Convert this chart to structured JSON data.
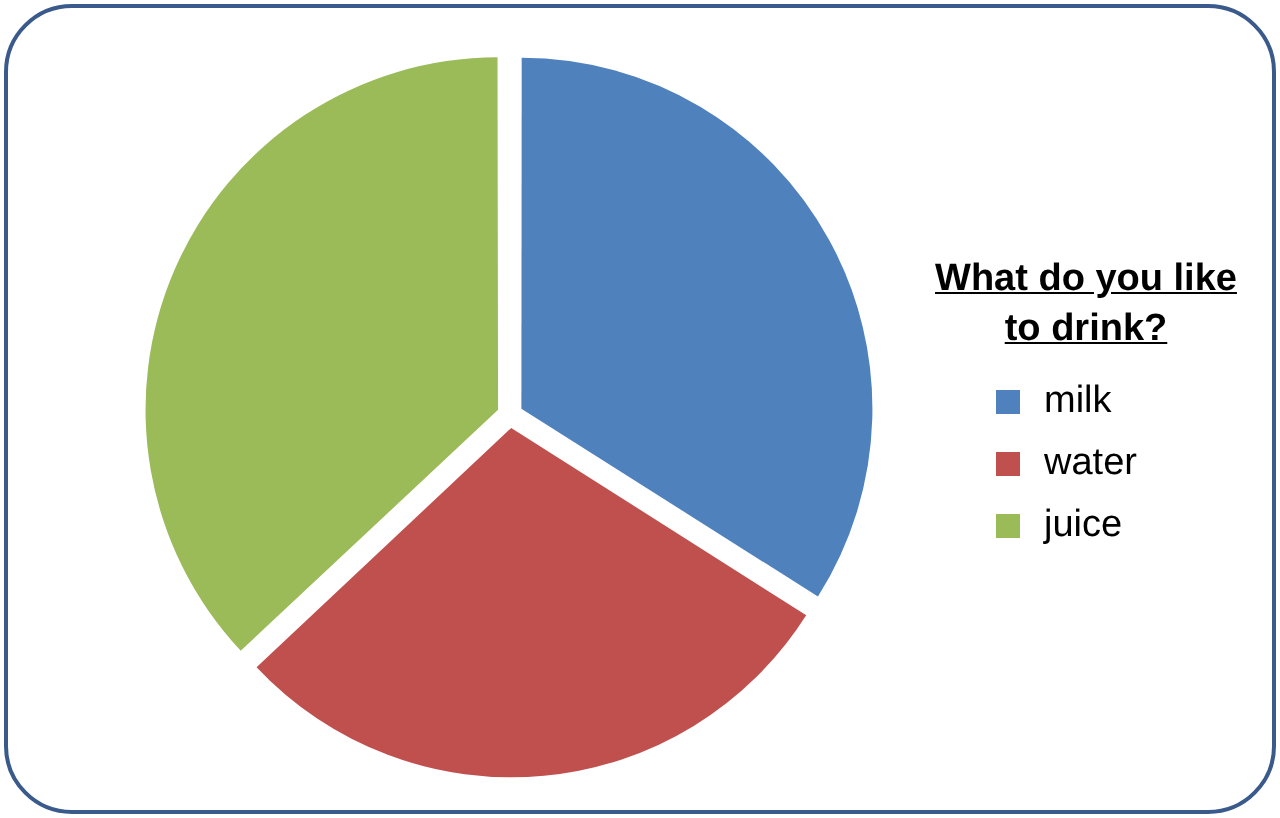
{
  "chart_data": {
    "type": "pie",
    "legend_title": "What do you like to drink?",
    "legend": "right",
    "categories": [
      "milk",
      "water",
      "juice"
    ],
    "values": [
      34,
      29,
      37
    ],
    "colors": [
      "#4f81bd",
      "#c0504d",
      "#9bbb59"
    ]
  }
}
